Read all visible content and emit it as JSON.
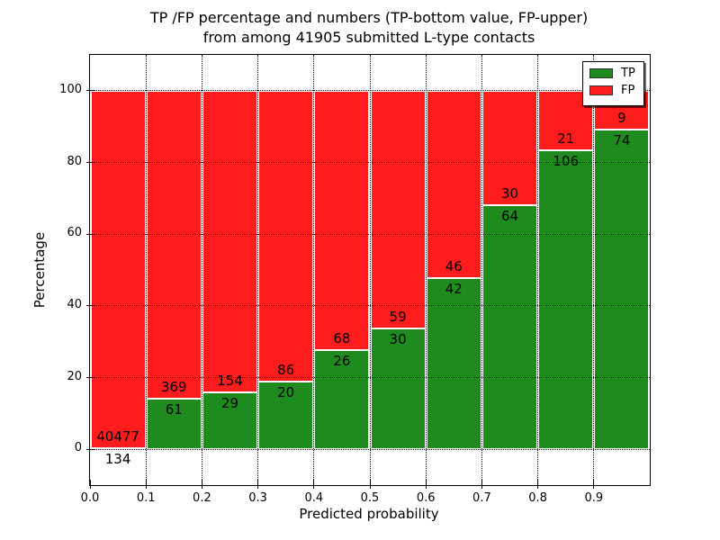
{
  "title": {
    "line1": "TP /FP percentage and numbers (TP-bottom value, FP-upper)",
    "line2": "from among 41905 submitted L-type contacts"
  },
  "chart_data": {
    "type": "bar",
    "stacked": true,
    "normalized_to_percent": true,
    "total_contacts": "41905",
    "x_bins": [
      "0.0-0.1",
      "0.1-0.2",
      "0.2-0.3",
      "0.3-0.4",
      "0.4-0.5",
      "0.5-0.6",
      "0.6-0.7",
      "0.7-0.8",
      "0.8-0.9",
      "0.9-1.0"
    ],
    "series": [
      {
        "name": "TP",
        "color": "#1f8b1f",
        "counts": [
          134,
          61,
          29,
          20,
          26,
          30,
          42,
          64,
          106,
          74
        ]
      },
      {
        "name": "FP",
        "color": "#ff1c1c",
        "counts": [
          40477,
          369,
          154,
          86,
          68,
          59,
          46,
          30,
          21,
          9
        ]
      }
    ],
    "tp_percent_of_bin": [
      0.33,
      14.19,
      15.85,
      18.87,
      27.66,
      33.71,
      47.73,
      68.09,
      83.46,
      89.16
    ],
    "xlabel": "Predicted probability",
    "ylabel": "Percentage",
    "x_ticks": [
      "0.0",
      "0.1",
      "0.2",
      "0.3",
      "0.4",
      "0.5",
      "0.6",
      "0.7",
      "0.8",
      "0.9"
    ],
    "y_ticks": [
      "0",
      "20",
      "40",
      "60",
      "80",
      "100"
    ],
    "xlim": [
      0,
      1
    ],
    "ylim": [
      -10,
      110
    ],
    "grid": "dotted",
    "legend": {
      "entries": [
        "TP",
        "FP"
      ],
      "position": "upper right"
    }
  }
}
